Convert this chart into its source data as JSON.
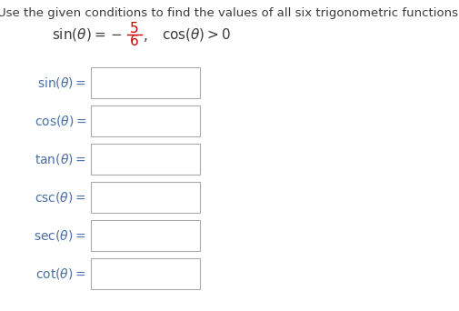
{
  "title": "Use the given conditions to find the values of all six trigonometric functions.",
  "title_color": "#3a3a3a",
  "title_fontsize": 9.5,
  "condition_color": "#3a3a3a",
  "fraction_color": "#cc0000",
  "label_color": "#4a6fa5",
  "label_fontsize": 10,
  "bg_color": "#ffffff",
  "box_edge_color": "#aaaaaa",
  "labels": [
    "sin(θ)",
    "cos(θ)",
    "tan(θ)",
    "csc(θ)",
    "sec(θ)",
    "cot(θ)"
  ],
  "fig_width": 5.05,
  "fig_height": 3.42,
  "dpi": 100
}
